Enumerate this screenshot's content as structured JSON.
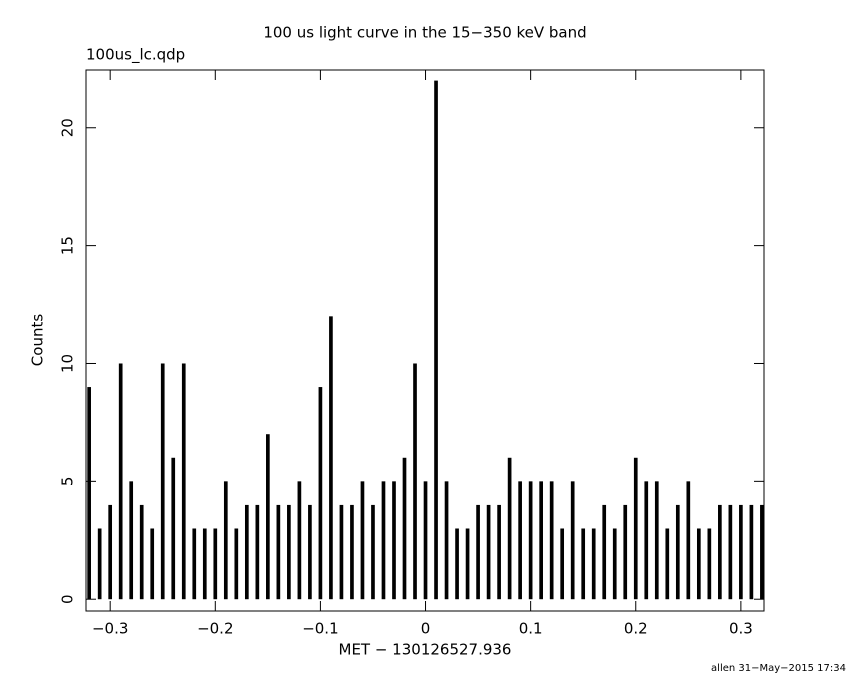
{
  "chart_data": {
    "type": "bar",
    "title": "100 us light curve in the 15−350 keV band",
    "subtitle": "100us_lc.qdp",
    "x_label": "MET − 130126527.936",
    "y_label": "Counts",
    "footer": "allen 31−May−2015 17:34",
    "color": "#000000",
    "x": [
      -0.32,
      -0.31,
      -0.3,
      -0.29,
      -0.28,
      -0.27,
      -0.26,
      -0.25,
      -0.24,
      -0.23,
      -0.22,
      -0.21,
      -0.2,
      -0.19,
      -0.18,
      -0.17,
      -0.16,
      -0.15,
      -0.14,
      -0.13,
      -0.12,
      -0.11,
      -0.1,
      -0.09,
      -0.08,
      -0.07,
      -0.06,
      -0.05,
      -0.04,
      -0.03,
      -0.02,
      -0.01,
      0.0,
      0.01,
      0.02,
      0.03,
      0.04,
      0.05,
      0.06,
      0.07,
      0.08,
      0.09,
      0.1,
      0.11,
      0.12,
      0.13,
      0.14,
      0.15,
      0.16,
      0.17,
      0.18,
      0.19,
      0.2,
      0.21,
      0.22,
      0.23,
      0.24,
      0.25,
      0.26,
      0.27,
      0.28,
      0.29,
      0.3,
      0.31,
      0.32
    ],
    "values": [
      9,
      3,
      4,
      10,
      5,
      4,
      3,
      10,
      6,
      10,
      3,
      3,
      3,
      5,
      3,
      4,
      4,
      7,
      4,
      4,
      5,
      4,
      9,
      12,
      4,
      4,
      5,
      4,
      5,
      5,
      6,
      10,
      5,
      22,
      5,
      3,
      3,
      4,
      4,
      4,
      6,
      5,
      5,
      5,
      5,
      3,
      5,
      3,
      3,
      4,
      3,
      4,
      6,
      5,
      5,
      3,
      4,
      5,
      3,
      3,
      4,
      4,
      4,
      4,
      4
    ],
    "xlim": [
      -0.323,
      0.322
    ],
    "ylim": [
      -0.5,
      22.45
    ],
    "xticks": [
      {
        "value": -0.3,
        "label": "−0.3"
      },
      {
        "value": -0.2,
        "label": "−0.2"
      },
      {
        "value": -0.1,
        "label": "−0.1"
      },
      0,
      0.1,
      0.2,
      0.3
    ],
    "yticks": [
      0,
      5,
      10,
      15,
      20
    ]
  }
}
